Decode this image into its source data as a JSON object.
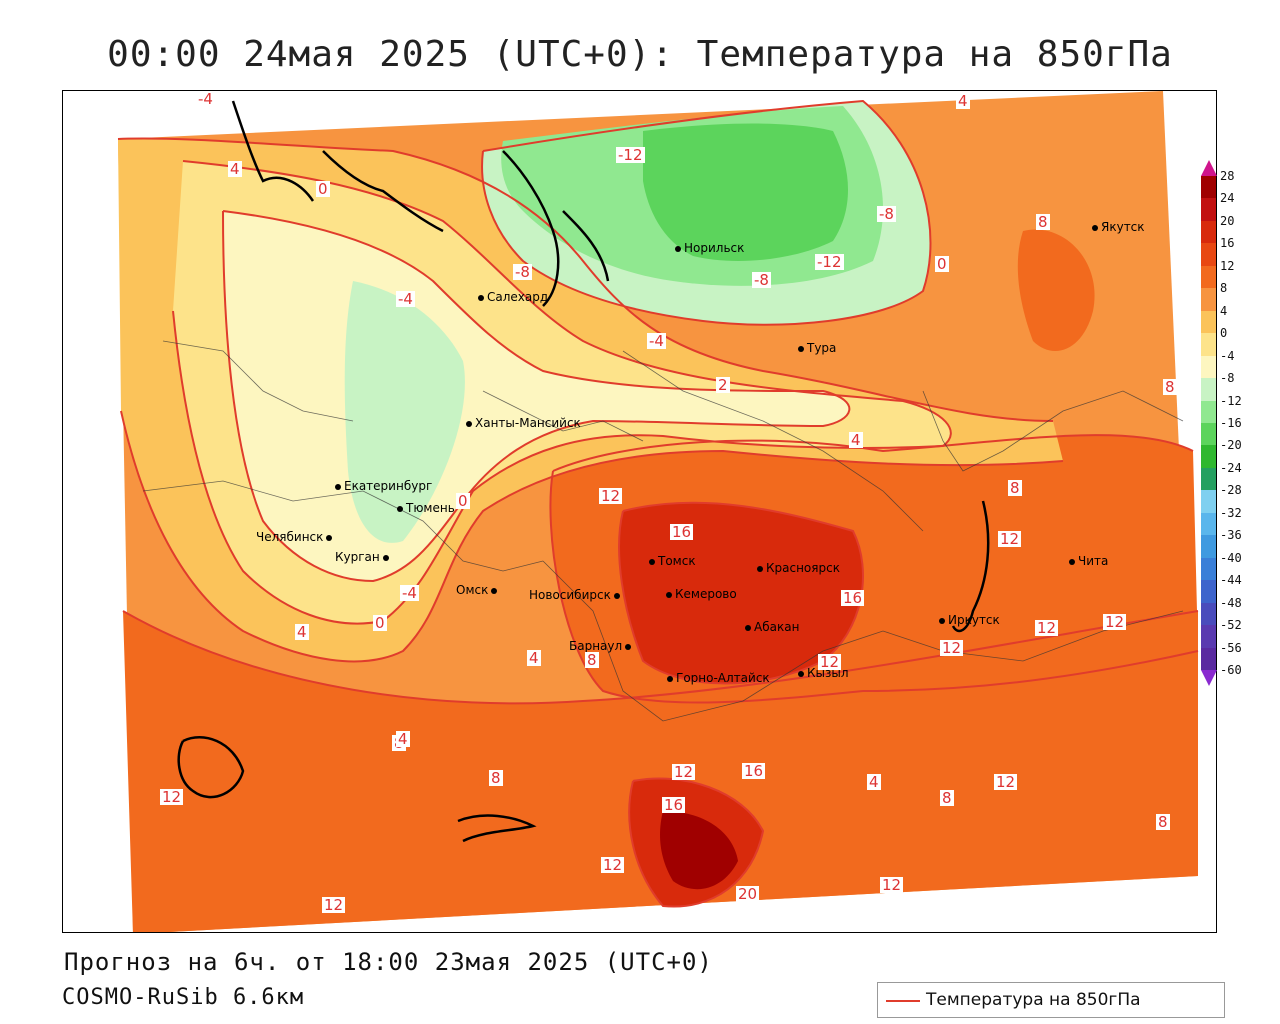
{
  "title": "00:00 24мая 2025 (UTC+0): Температура на 850гПа",
  "footer": {
    "forecast": "Прогноз на 6ч. от 18:00 23мая 2025 (UTC+0)",
    "model": "COSMO-RuSib 6.6км"
  },
  "legend": {
    "label": "Температура на 850гПа",
    "line_color": "#e03c2c"
  },
  "colorbar": {
    "ticks": [
      "28",
      "24",
      "20",
      "16",
      "12",
      "8",
      "4",
      "0",
      "-4",
      "-8",
      "-12",
      "-16",
      "-20",
      "-24",
      "-28",
      "-32",
      "-36",
      "-40",
      "-44",
      "-48",
      "-52",
      "-56",
      "-60"
    ],
    "colors": [
      "#a00000",
      "#c21010",
      "#d82a0c",
      "#e84812",
      "#f26a1e",
      "#f79440",
      "#fbc35a",
      "#fde38a",
      "#fdf6c0",
      "#c8f3c4",
      "#90e890",
      "#5cd45c",
      "#2fb82f",
      "#24a060",
      "#7fd0f0",
      "#5ab6ec",
      "#3f9ae0",
      "#3a7fd8",
      "#3e64cc",
      "#4a4cbc",
      "#5a3ab0",
      "#5a2aa0",
      "#48208c"
    ],
    "top_cap_color": "#d0148c",
    "bottom_cap_color": "#8a2ad0"
  },
  "cities": [
    {
      "name": "Якутск"
    },
    {
      "name": "Норильск"
    },
    {
      "name": "Салехард"
    },
    {
      "name": "Тура"
    },
    {
      "name": "Ханты-Мансийск"
    },
    {
      "name": "Екатеринбург"
    },
    {
      "name": "Тюмень"
    },
    {
      "name": "Челябинск"
    },
    {
      "name": "Курган"
    },
    {
      "name": "Омск"
    },
    {
      "name": "Новосибирск"
    },
    {
      "name": "Томск"
    },
    {
      "name": "Красноярск"
    },
    {
      "name": "Кемерово"
    },
    {
      "name": "Абакан"
    },
    {
      "name": "Барнаул"
    },
    {
      "name": "Горно-Алтайск"
    },
    {
      "name": "Кызыл"
    },
    {
      "name": "Иркутск"
    },
    {
      "name": "Чита"
    }
  ],
  "contour_labels": [
    "4",
    "0",
    "-4",
    "-8",
    "-12",
    "-8",
    "-12",
    "-8",
    "-4",
    "0",
    "4",
    "8",
    "12",
    "16",
    "16",
    "12",
    "12",
    "12",
    "12",
    "8",
    "4",
    "0",
    "-4",
    "4",
    "8",
    "12",
    "8",
    "12",
    "16",
    "12",
    "20",
    "12",
    "4",
    "8",
    "12",
    "8",
    "8",
    "12",
    "4",
    "8",
    "12",
    "16",
    "4",
    "2",
    "0",
    "-4"
  ]
}
